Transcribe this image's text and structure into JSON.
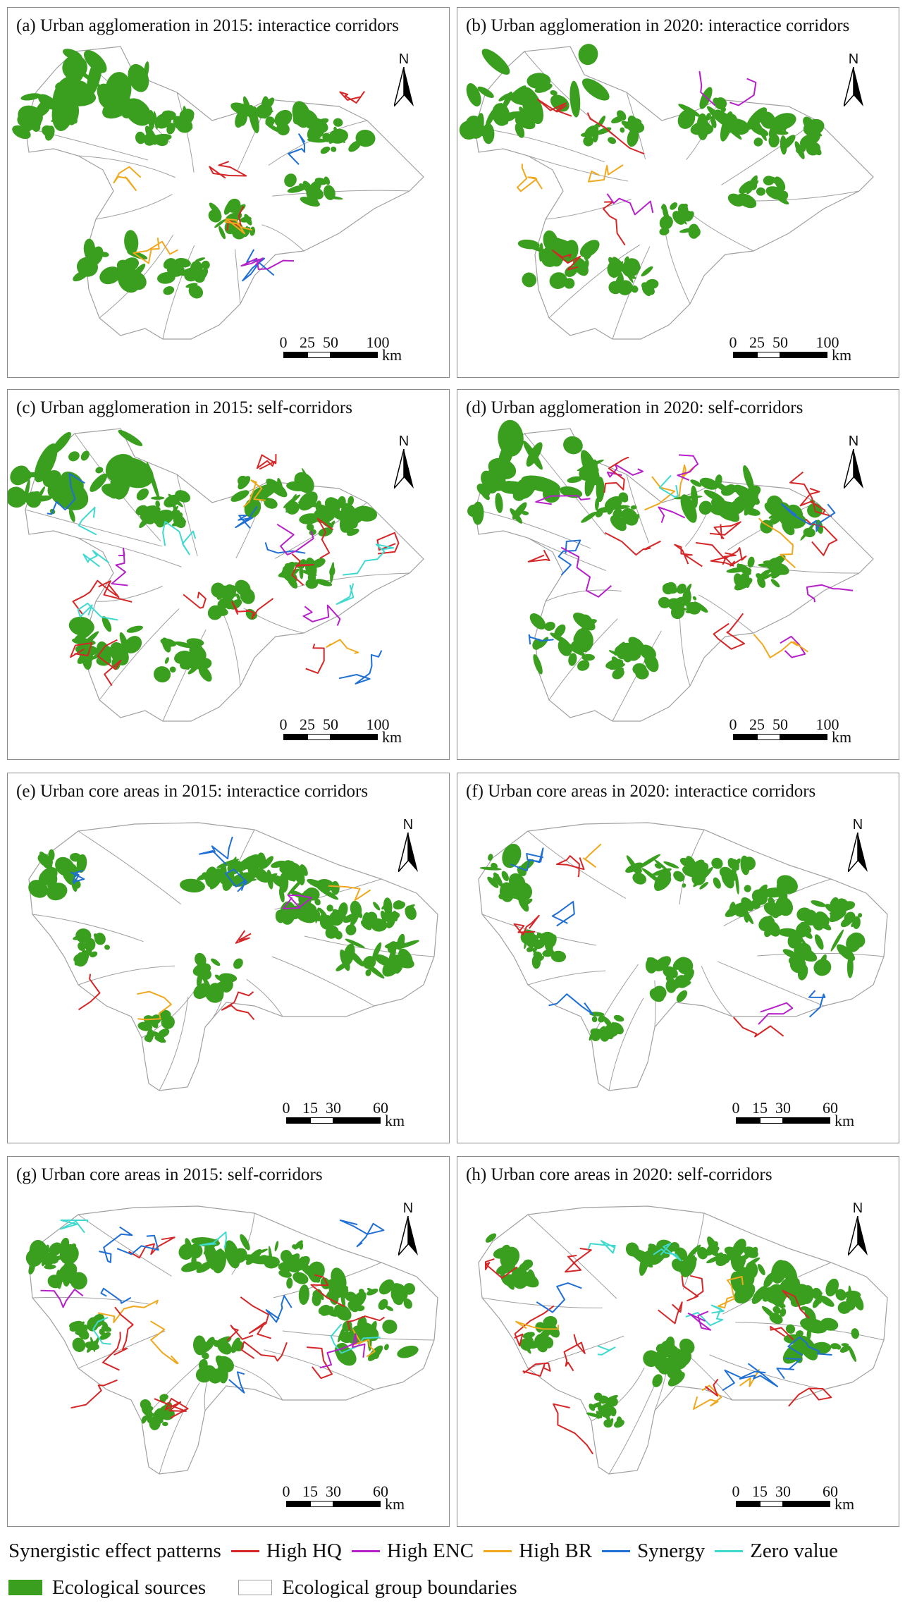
{
  "colors": {
    "ecological_sources": "#3a9e1f",
    "boundaries": "#a0a0a0",
    "high_hq": "#d62728",
    "high_enc": "#b620c9",
    "high_br": "#f0a81e",
    "synergy": "#1f6fd4",
    "zero_value": "#3fd9d0"
  },
  "panels": [
    {
      "title": "(a) Urban agglomeration in 2015: interactice corridors",
      "scale_ticks": [
        "0",
        "25",
        "50",
        "100"
      ],
      "unit": "km"
    },
    {
      "title": "(b) Urban agglomeration in 2020: interactice corridors",
      "scale_ticks": [
        "0",
        "25",
        "50",
        "100"
      ],
      "unit": "km"
    },
    {
      "title": "(c) Urban agglomeration in 2015: self-corridors",
      "scale_ticks": [
        "0",
        "25",
        "50",
        "100"
      ],
      "unit": "km"
    },
    {
      "title": "(d) Urban agglomeration in 2020: self-corridors",
      "scale_ticks": [
        "0",
        "25",
        "50",
        "100"
      ],
      "unit": "km"
    },
    {
      "title": "(e) Urban core areas in 2015: interactice corridors",
      "scale_ticks": [
        "0",
        "15",
        "30",
        "60"
      ],
      "unit": "km"
    },
    {
      "title": "(f) Urban core areas in 2020: interactice corridors",
      "scale_ticks": [
        "0",
        "15",
        "30",
        "60"
      ],
      "unit": "km"
    },
    {
      "title": "(g) Urban core areas in 2015: self-corridors",
      "scale_ticks": [
        "0",
        "15",
        "30",
        "60"
      ],
      "unit": "km"
    },
    {
      "title": "(h) Urban core areas in 2020: self-corridors",
      "scale_ticks": [
        "0",
        "15",
        "30",
        "60"
      ],
      "unit": "km"
    }
  ],
  "north_label": "N",
  "legend": {
    "patterns_title": "Synergistic effect patterns",
    "high_hq": "High HQ",
    "high_enc": "High ENC",
    "high_br": "High BR",
    "synergy": "Synergy",
    "zero_value": "Zero value",
    "ecological_sources": "Ecological sources",
    "group_boundaries": "Ecological group boundaries"
  }
}
